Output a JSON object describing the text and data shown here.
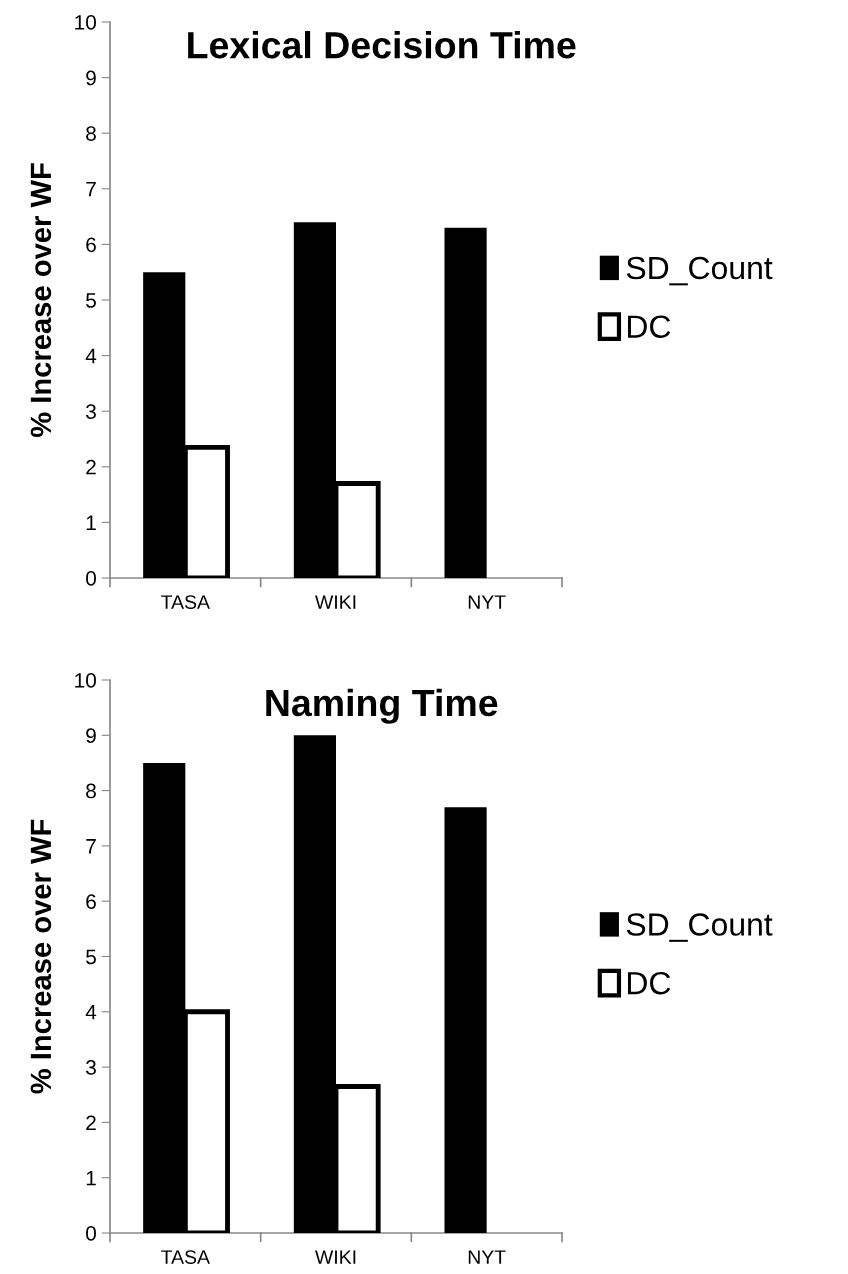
{
  "chart_data": [
    {
      "type": "bar",
      "title": "Lexical Decision Time",
      "ylabel": "% Increase over WF",
      "categories": [
        "TASA",
        "WIKI",
        "NYT"
      ],
      "series": [
        {
          "name": "SD_Count",
          "color": "#000000",
          "values": [
            5.5,
            6.4,
            6.3
          ]
        },
        {
          "name": "DC",
          "color": "#ffffff",
          "values": [
            2.35,
            1.7,
            null
          ]
        }
      ],
      "ylim": [
        0,
        10
      ],
      "yticks": [
        0,
        1,
        2,
        3,
        4,
        5,
        6,
        7,
        8,
        9,
        10
      ],
      "grid": false,
      "legend": "right"
    },
    {
      "type": "bar",
      "title": "Naming Time",
      "ylabel": "% Increase over WF",
      "categories": [
        "TASA",
        "WIKI",
        "NYT"
      ],
      "series": [
        {
          "name": "SD_Count",
          "color": "#000000",
          "values": [
            8.5,
            9.0,
            7.7
          ]
        },
        {
          "name": "DC",
          "color": "#ffffff",
          "values": [
            4.0,
            2.65,
            null
          ]
        }
      ],
      "ylim": [
        0,
        10
      ],
      "yticks": [
        0,
        1,
        2,
        3,
        4,
        5,
        6,
        7,
        8,
        9,
        10
      ],
      "grid": false,
      "legend": "right"
    }
  ]
}
